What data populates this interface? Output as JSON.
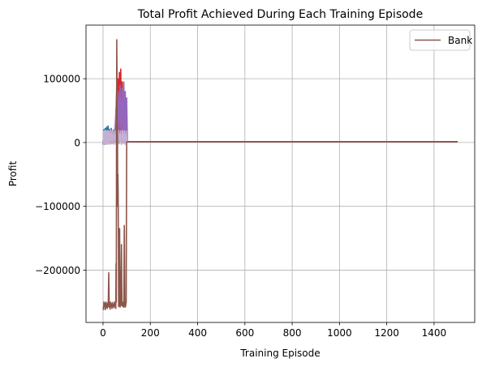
{
  "chart_data": {
    "type": "line",
    "title": "Total Profit Achieved During Each Training Episode",
    "xlabel": "Training Episode",
    "ylabel": "Profit",
    "xlim": [
      -72,
      1572
    ],
    "ylim": [
      -282000,
      184000
    ],
    "xticks": [
      0,
      200,
      400,
      600,
      800,
      1000,
      1200,
      1400
    ],
    "yticks": [
      -200000,
      -100000,
      0,
      100000
    ],
    "ytick_labels": [
      "−200000",
      "−100000",
      "0",
      "100000"
    ],
    "grid": true,
    "legend": {
      "position": "top-right",
      "entries": [
        "Bank"
      ]
    },
    "series": [
      {
        "name": "",
        "color": "#1f77b4",
        "points": [
          [
            0,
            -3000
          ],
          [
            3,
            20000
          ],
          [
            6,
            -2000
          ],
          [
            9,
            22000
          ],
          [
            12,
            -1000
          ],
          [
            15,
            24000
          ],
          [
            18,
            500
          ],
          [
            21,
            26000
          ],
          [
            24,
            -1500
          ],
          [
            27,
            21000
          ],
          [
            30,
            0
          ],
          [
            35,
            22000
          ],
          [
            40,
            -1000
          ],
          [
            45,
            20000
          ],
          [
            50,
            1000
          ],
          [
            55,
            25000
          ],
          [
            60,
            0
          ],
          [
            65,
            22000
          ],
          [
            70,
            -500
          ],
          [
            75,
            40000
          ],
          [
            80,
            1000
          ],
          [
            85,
            30000
          ],
          [
            90,
            500
          ],
          [
            100,
            1000
          ],
          [
            1500,
            1000
          ]
        ]
      },
      {
        "name": "",
        "color": "#ff7f0e",
        "points": [
          [
            0,
            1000
          ],
          [
            4,
            18000
          ],
          [
            8,
            -3000
          ],
          [
            12,
            19000
          ],
          [
            16,
            -1000
          ],
          [
            20,
            17000
          ],
          [
            24,
            0
          ],
          [
            30,
            19000
          ],
          [
            36,
            -500
          ],
          [
            42,
            18000
          ],
          [
            48,
            500
          ],
          [
            54,
            20000
          ],
          [
            60,
            0
          ],
          [
            66,
            19000
          ],
          [
            72,
            1000
          ],
          [
            78,
            28000
          ],
          [
            84,
            500
          ],
          [
            90,
            1000
          ],
          [
            100,
            1000
          ],
          [
            1500,
            1000
          ]
        ]
      },
      {
        "name": "",
        "color": "#2ca02c",
        "points": [
          [
            0,
            2000
          ],
          [
            5,
            16000
          ],
          [
            10,
            -1000
          ],
          [
            15,
            17000
          ],
          [
            20,
            500
          ],
          [
            26,
            15000
          ],
          [
            32,
            0
          ],
          [
            38,
            16000
          ],
          [
            44,
            -500
          ],
          [
            50,
            18000
          ],
          [
            56,
            1000
          ],
          [
            62,
            45000
          ],
          [
            66,
            0
          ],
          [
            72,
            60000
          ],
          [
            78,
            1000
          ],
          [
            84,
            20000
          ],
          [
            90,
            500
          ],
          [
            100,
            1000
          ],
          [
            1500,
            1000
          ]
        ]
      },
      {
        "name": "",
        "color": "#d62728",
        "points": [
          [
            0,
            0
          ],
          [
            6,
            15000
          ],
          [
            12,
            -2000
          ],
          [
            18,
            16000
          ],
          [
            24,
            0
          ],
          [
            30,
            17000
          ],
          [
            36,
            -1000
          ],
          [
            42,
            15000
          ],
          [
            48,
            500
          ],
          [
            54,
            30000
          ],
          [
            58,
            90000
          ],
          [
            60,
            5000
          ],
          [
            63,
            100000
          ],
          [
            66,
            10000
          ],
          [
            69,
            110000
          ],
          [
            72,
            5000
          ],
          [
            75,
            115000
          ],
          [
            78,
            20000
          ],
          [
            81,
            95000
          ],
          [
            84,
            0
          ],
          [
            88,
            60000
          ],
          [
            92,
            1000
          ],
          [
            100,
            1000
          ],
          [
            1500,
            1000
          ]
        ]
      },
      {
        "name": "",
        "color": "#9467bd",
        "points": [
          [
            0,
            -1000
          ],
          [
            5,
            12000
          ],
          [
            10,
            0
          ],
          [
            15,
            14000
          ],
          [
            20,
            -500
          ],
          [
            30,
            13000
          ],
          [
            40,
            0
          ],
          [
            50,
            14000
          ],
          [
            56,
            60000
          ],
          [
            60,
            10000
          ],
          [
            64,
            80000
          ],
          [
            68,
            20000
          ],
          [
            72,
            90000
          ],
          [
            76,
            5000
          ],
          [
            80,
            85000
          ],
          [
            84,
            0
          ],
          [
            88,
            95000
          ],
          [
            91,
            1000
          ],
          [
            94,
            80000
          ],
          [
            97,
            0
          ],
          [
            100,
            70000
          ],
          [
            103,
            1000
          ],
          [
            1500,
            1000
          ]
        ]
      },
      {
        "name": "",
        "color": "#c5b0d5",
        "points": [
          [
            0,
            -2000
          ],
          [
            3,
            18000
          ],
          [
            6,
            -3000
          ],
          [
            9,
            19000
          ],
          [
            12,
            -2000
          ],
          [
            15,
            18000
          ],
          [
            18,
            -3000
          ],
          [
            21,
            19000
          ],
          [
            24,
            -2000
          ],
          [
            27,
            18000
          ],
          [
            30,
            -3000
          ],
          [
            34,
            19000
          ],
          [
            38,
            -2000
          ],
          [
            42,
            18000
          ],
          [
            46,
            -3000
          ],
          [
            50,
            19000
          ],
          [
            54,
            -2000
          ],
          [
            58,
            18000
          ],
          [
            62,
            -3000
          ],
          [
            66,
            19000
          ],
          [
            70,
            -2000
          ],
          [
            74,
            18000
          ],
          [
            78,
            -3000
          ],
          [
            82,
            19000
          ],
          [
            86,
            -2000
          ],
          [
            90,
            18000
          ],
          [
            94,
            -3000
          ],
          [
            98,
            18000
          ],
          [
            102,
            0
          ]
        ]
      },
      {
        "name": "Bank",
        "color": "#8c564b",
        "points": [
          [
            0,
            -258000
          ],
          [
            2,
            -262000
          ],
          [
            4,
            -250000
          ],
          [
            6,
            -257000
          ],
          [
            8,
            -252000
          ],
          [
            10,
            -262000
          ],
          [
            12,
            -250000
          ],
          [
            14,
            -258000
          ],
          [
            16,
            -253000
          ],
          [
            18,
            -260000
          ],
          [
            20,
            -251000
          ],
          [
            22,
            -257000
          ],
          [
            24,
            -204000
          ],
          [
            26,
            -258000
          ],
          [
            28,
            -252000
          ],
          [
            30,
            -261000
          ],
          [
            32,
            -250000
          ],
          [
            34,
            -257000
          ],
          [
            36,
            -253000
          ],
          [
            38,
            -260000
          ],
          [
            40,
            -251000
          ],
          [
            42,
            -257000
          ],
          [
            44,
            -254000
          ],
          [
            46,
            -259000
          ],
          [
            48,
            -250000
          ],
          [
            50,
            -256000
          ],
          [
            52,
            -253000
          ],
          [
            54,
            -260000
          ],
          [
            55,
            -190000
          ],
          [
            56,
            -250000
          ],
          [
            57,
            0
          ],
          [
            58,
            161000
          ],
          [
            59,
            100000
          ],
          [
            60,
            -50000
          ],
          [
            61,
            20000
          ],
          [
            62,
            -100000
          ],
          [
            63,
            -50000
          ],
          [
            64,
            -80000
          ],
          [
            65,
            -150000
          ],
          [
            66,
            -257000
          ],
          [
            68,
            -252000
          ],
          [
            70,
            -135000
          ],
          [
            72,
            -258000
          ],
          [
            74,
            -200000
          ],
          [
            76,
            -255000
          ],
          [
            78,
            -160000
          ],
          [
            80,
            -256000
          ],
          [
            82,
            -250000
          ],
          [
            84,
            -257000
          ],
          [
            86,
            -252000
          ],
          [
            88,
            -258000
          ],
          [
            90,
            -130000
          ],
          [
            92,
            -250000
          ],
          [
            94,
            -258000
          ],
          [
            96,
            -255000
          ],
          [
            98,
            -250000
          ],
          [
            100,
            0
          ],
          [
            102,
            1000
          ],
          [
            1500,
            1000
          ]
        ]
      }
    ]
  }
}
